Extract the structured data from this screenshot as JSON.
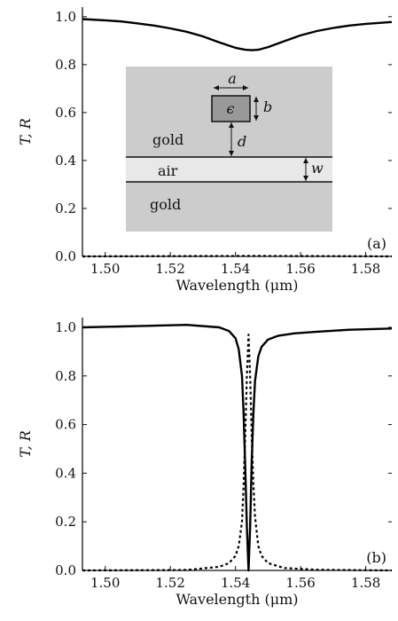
{
  "chart_data": [
    {
      "type": "line",
      "panel_label": "(a)",
      "xlabel": "Wavelength (μm)",
      "ylabel": "T, R",
      "xlim": [
        1.493,
        1.588
      ],
      "ylim": [
        0.0,
        1.04
      ],
      "xticks": [
        1.5,
        1.52,
        1.54,
        1.56,
        1.58
      ],
      "xtick_labels": [
        "1.50",
        "1.52",
        "1.54",
        "1.56",
        "1.58"
      ],
      "yticks": [
        0.0,
        0.2,
        0.4,
        0.6,
        0.8,
        1.0
      ],
      "ytick_labels": [
        "0.0",
        "0.2",
        "0.4",
        "0.6",
        "0.8",
        "1.0"
      ],
      "series": [
        {
          "style": "solid",
          "x": [
            1.493,
            1.5,
            1.505,
            1.51,
            1.515,
            1.52,
            1.525,
            1.53,
            1.535,
            1.54,
            1.543,
            1.545,
            1.547,
            1.55,
            1.555,
            1.56,
            1.565,
            1.57,
            1.575,
            1.58,
            1.588
          ],
          "y": [
            0.99,
            0.985,
            0.98,
            0.972,
            0.963,
            0.951,
            0.937,
            0.918,
            0.893,
            0.87,
            0.862,
            0.86,
            0.862,
            0.873,
            0.898,
            0.922,
            0.94,
            0.953,
            0.963,
            0.97,
            0.978
          ]
        },
        {
          "style": "dotted",
          "x": [
            1.493,
            1.52,
            1.545,
            1.57,
            1.588
          ],
          "y": [
            0.0,
            0.001,
            0.002,
            0.001,
            0.0
          ]
        }
      ],
      "inset": {
        "layer_labels": [
          "gold",
          "air",
          "gold"
        ],
        "symbols": {
          "a": "a",
          "b": "b",
          "d": "d",
          "w": "w",
          "eps": "ϵ"
        }
      }
    },
    {
      "type": "line",
      "panel_label": "(b)",
      "xlabel": "Wavelength (μm)",
      "ylabel": "T, R",
      "xlim": [
        1.493,
        1.588
      ],
      "ylim": [
        0.0,
        1.04
      ],
      "xticks": [
        1.5,
        1.52,
        1.54,
        1.56,
        1.58
      ],
      "xtick_labels": [
        "1.50",
        "1.52",
        "1.54",
        "1.56",
        "1.58"
      ],
      "yticks": [
        0.0,
        0.2,
        0.4,
        0.6,
        0.8,
        1.0
      ],
      "ytick_labels": [
        "0.0",
        "0.2",
        "0.4",
        "0.6",
        "0.8",
        "1.0"
      ],
      "series": [
        {
          "style": "solid",
          "x": [
            1.493,
            1.51,
            1.525,
            1.535,
            1.538,
            1.54,
            1.541,
            1.542,
            1.5425,
            1.543,
            1.5435,
            1.544,
            1.5445,
            1.545,
            1.5455,
            1.546,
            1.547,
            1.548,
            1.55,
            1.553,
            1.558,
            1.565,
            1.575,
            1.588
          ],
          "y": [
            1.0,
            1.005,
            1.01,
            1.0,
            0.985,
            0.955,
            0.91,
            0.8,
            0.65,
            0.42,
            0.18,
            0.0,
            0.18,
            0.45,
            0.65,
            0.78,
            0.88,
            0.92,
            0.95,
            0.965,
            0.975,
            0.982,
            0.99,
            0.995
          ]
        },
        {
          "style": "dotted",
          "x": [
            1.493,
            1.525,
            1.535,
            1.538,
            1.54,
            1.541,
            1.542,
            1.5425,
            1.543,
            1.5435,
            1.544,
            1.5445,
            1.545,
            1.5455,
            1.546,
            1.547,
            1.548,
            1.55,
            1.555,
            1.565,
            1.588
          ],
          "y": [
            0.0,
            0.002,
            0.015,
            0.03,
            0.06,
            0.1,
            0.2,
            0.35,
            0.56,
            0.8,
            0.97,
            0.8,
            0.55,
            0.35,
            0.22,
            0.1,
            0.06,
            0.03,
            0.01,
            0.003,
            0.0
          ]
        }
      ]
    }
  ]
}
